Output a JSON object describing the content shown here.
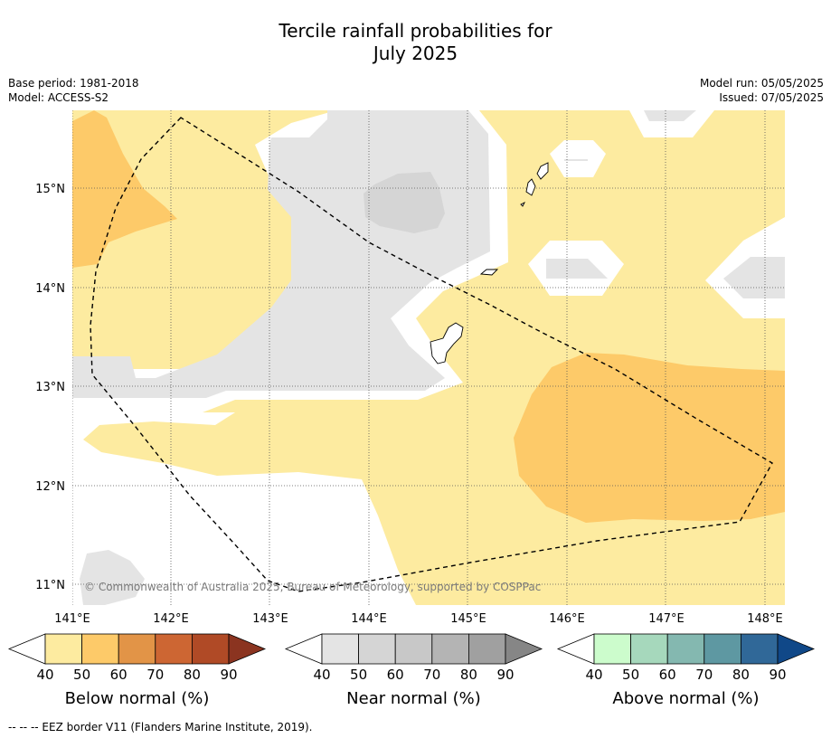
{
  "title": {
    "line1": "Tercile rainfall probabilities for",
    "line2": "July 2025"
  },
  "meta_left": {
    "base_period": "Base period: 1981-2018",
    "model": "Model: ACCESS-S2"
  },
  "meta_right": {
    "model_run": "Model run: 05/05/2025",
    "issued": "Issued: 07/05/2025"
  },
  "map": {
    "lon_labels": [
      "141°E",
      "142°E",
      "143°E",
      "144°E",
      "145°E",
      "146°E",
      "147°E",
      "148°E"
    ],
    "lat_labels": [
      "15°N",
      "14°N",
      "13°N",
      "12°N",
      "11°N"
    ],
    "lon_range": [
      141.0,
      148.2
    ],
    "lat_range": [
      10.8,
      15.8
    ],
    "copyright": "© Commonwealth of Australia 2025, Bureau of Meteorology, supported by COSPPac"
  },
  "colorbars": [
    {
      "title": "Below normal (%)",
      "ticks": [
        "40",
        "50",
        "60",
        "70",
        "80",
        "90"
      ],
      "colors": [
        "#fdeba0",
        "#fdca69",
        "#e29447",
        "#cd6633",
        "#b04a26",
        "#8b3420"
      ]
    },
    {
      "title": "Near normal (%)",
      "ticks": [
        "40",
        "50",
        "60",
        "70",
        "80",
        "90"
      ],
      "colors": [
        "#e4e4e4",
        "#d5d5d5",
        "#c8c8c8",
        "#b4b4b4",
        "#a0a0a0",
        "#868686"
      ]
    },
    {
      "title": "Above normal (%)",
      "ticks": [
        "40",
        "50",
        "60",
        "70",
        "80",
        "90"
      ],
      "colors": [
        "#ccfccc",
        "#a6d8bc",
        "#84b8b0",
        "#5e98a2",
        "#306898",
        "#104888"
      ]
    }
  ],
  "footer": "--  --  -- EEZ border V11 (Flanders Marine Institute, 2019)."
}
